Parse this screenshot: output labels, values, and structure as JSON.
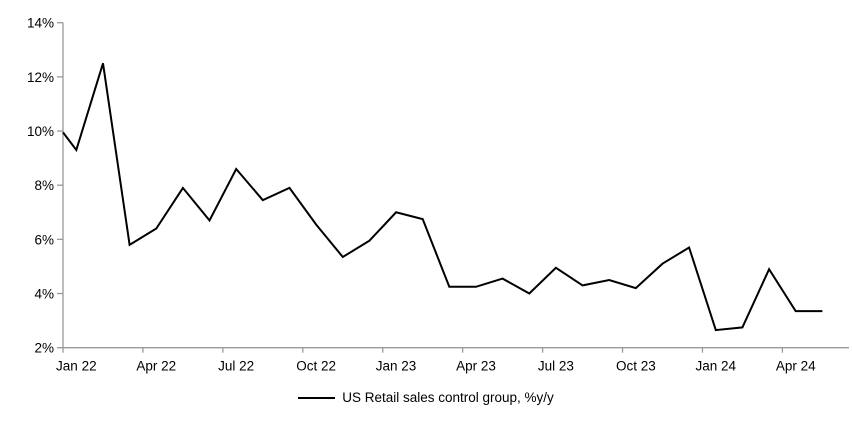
{
  "chart_data": {
    "type": "line",
    "title": "",
    "categories": [
      "Jan 22",
      "Feb 22",
      "Mar 22",
      "Apr 22",
      "May 22",
      "Jun 22",
      "Jul 22",
      "Aug 22",
      "Sep 22",
      "Oct 22",
      "Nov 22",
      "Dec 22",
      "Jan 23",
      "Feb 23",
      "Mar 23",
      "Apr 23",
      "May 23",
      "Jun 23",
      "Jul 23",
      "Aug 23",
      "Sep 23",
      "Oct 23",
      "Nov 23",
      "Dec 23",
      "Jan 24",
      "Feb 24",
      "Mar 24",
      "Apr 24",
      "May 24"
    ],
    "series": [
      {
        "name": "US Retail sales control group, %y/y",
        "color": "#000000",
        "values": [
          9.3,
          12.5,
          5.8,
          6.4,
          7.9,
          6.7,
          8.6,
          7.45,
          7.9,
          6.55,
          5.35,
          5.95,
          7.0,
          6.75,
          4.25,
          4.25,
          4.55,
          4.0,
          4.95,
          4.3,
          4.5,
          4.2,
          5.1,
          5.7,
          2.65,
          2.75,
          4.9,
          3.35,
          3.35
        ]
      }
    ],
    "clipped_start_value_at_axis": 9.95,
    "x_tick_labels": [
      "Jan 22",
      "Apr 22",
      "Jul 22",
      "Oct 22",
      "Jan 23",
      "Apr 23",
      "Jul 23",
      "Oct 23",
      "Jan 24",
      "Apr 24"
    ],
    "x_tick_interval_months": 3,
    "ytick_labels": [
      "2%",
      "4%",
      "6%",
      "8%",
      "10%",
      "12%",
      "14%"
    ],
    "ylim": [
      2,
      14
    ],
    "ytick_step": 2,
    "grid": false,
    "legend_position": "bottom-center",
    "axis_color": "#999999",
    "line_color": "#000000",
    "background_color": "#ffffff"
  }
}
